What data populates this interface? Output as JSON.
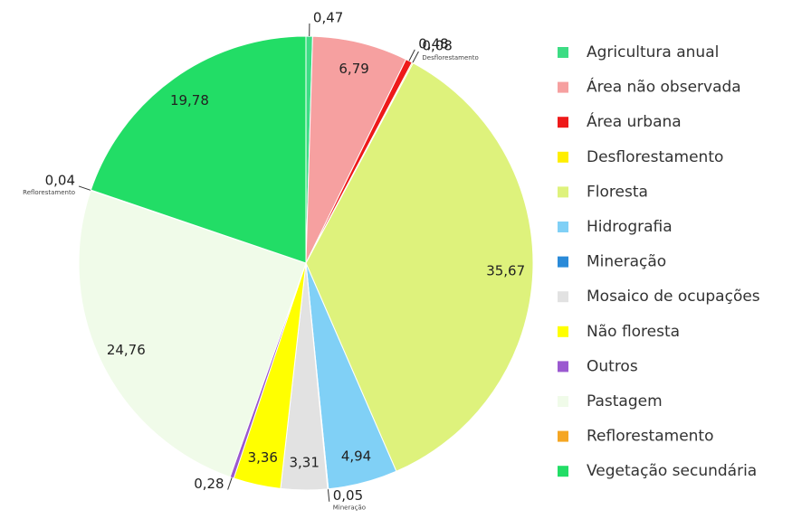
{
  "chart_data": {
    "type": "pie",
    "categories": [
      "Agricultura anual",
      "Área não observada",
      "Área urbana",
      "Desflorestamento",
      "Floresta",
      "Hidrografia",
      "Mineração",
      "Mosaico de ocupações",
      "Não floresta",
      "Outros",
      "Pastagem",
      "Reflorestamento",
      "Vegetação secundária"
    ],
    "values": [
      0.47,
      6.79,
      0.48,
      0.08,
      35.67,
      4.94,
      0.05,
      3.31,
      3.36,
      0.28,
      24.76,
      0.04,
      19.78
    ],
    "value_labels": [
      "0,47",
      "6,79",
      "0,48",
      "0,08",
      "35,67",
      "4,94",
      "0,05",
      "3,31",
      "3,36",
      "0,28",
      "24,76",
      "0,04",
      "19,78"
    ],
    "colors": [
      "#3ddc84",
      "#f6a0a0",
      "#ee1a1a",
      "#ffee00",
      "#def27c",
      "#80d0f6",
      "#2a8ad8",
      "#e2e2e2",
      "#ffff00",
      "#9b59d0",
      "#f0fbe9",
      "#f5a623",
      "#22dd66"
    ],
    "legend": "right"
  }
}
